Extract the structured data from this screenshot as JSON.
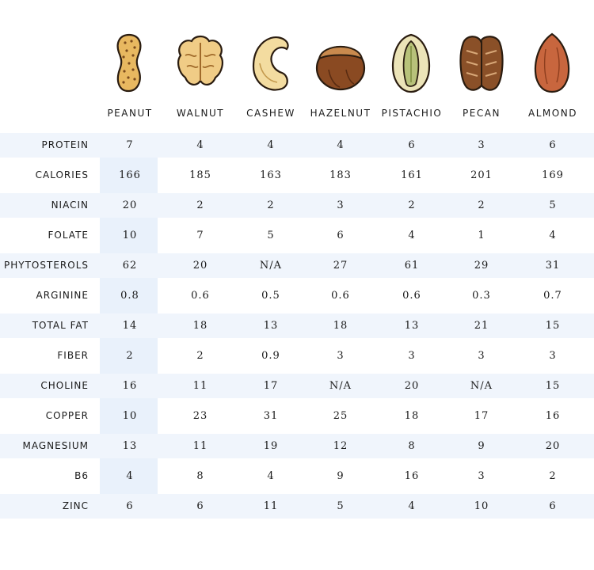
{
  "columns": [
    {
      "name": "PEANUT",
      "icon": "peanut-icon"
    },
    {
      "name": "WALNUT",
      "icon": "walnut-icon"
    },
    {
      "name": "CASHEW",
      "icon": "cashew-icon"
    },
    {
      "name": "HAZELNUT",
      "icon": "hazelnut-icon"
    },
    {
      "name": "PISTACHIO",
      "icon": "pistachio-icon"
    },
    {
      "name": "PECAN",
      "icon": "pecan-icon"
    },
    {
      "name": "ALMOND",
      "icon": "almond-icon"
    }
  ],
  "rows": [
    {
      "label": "PROTEIN",
      "values": [
        "7",
        "4",
        "4",
        "4",
        "6",
        "3",
        "6"
      ]
    },
    {
      "label": "CALORIES",
      "values": [
        "166",
        "185",
        "163",
        "183",
        "161",
        "201",
        "169"
      ]
    },
    {
      "label": "NIACIN",
      "values": [
        "20",
        "2",
        "2",
        "3",
        "2",
        "2",
        "5"
      ]
    },
    {
      "label": "FOLATE",
      "values": [
        "10",
        "7",
        "5",
        "6",
        "4",
        "1",
        "4"
      ]
    },
    {
      "label": "PHYTOSTEROLS",
      "values": [
        "62",
        "20",
        "N/A",
        "27",
        "61",
        "29",
        "31"
      ]
    },
    {
      "label": "ARGININE",
      "values": [
        "0.8",
        "0.6",
        "0.5",
        "0.6",
        "0.6",
        "0.3",
        "0.7"
      ]
    },
    {
      "label": "TOTAL FAT",
      "values": [
        "14",
        "18",
        "13",
        "18",
        "13",
        "21",
        "15"
      ]
    },
    {
      "label": "FIBER",
      "values": [
        "2",
        "2",
        "0.9",
        "3",
        "3",
        "3",
        "3"
      ]
    },
    {
      "label": "CHOLINE",
      "values": [
        "16",
        "11",
        "17",
        "N/A",
        "20",
        "N/A",
        "15"
      ]
    },
    {
      "label": "COPPER",
      "values": [
        "10",
        "23",
        "31",
        "25",
        "18",
        "17",
        "16"
      ]
    },
    {
      "label": "MAGNESIUM",
      "values": [
        "13",
        "11",
        "19",
        "12",
        "8",
        "9",
        "20"
      ]
    },
    {
      "label": "B6",
      "values": [
        "4",
        "8",
        "4",
        "9",
        "16",
        "3",
        "2"
      ]
    },
    {
      "label": "ZINC",
      "values": [
        "6",
        "6",
        "11",
        "5",
        "4",
        "10",
        "6"
      ]
    }
  ],
  "colors": {
    "row_band": "#f0f5fc",
    "highlight_column": "#e9f1fb",
    "text": "#1a1a1a"
  }
}
